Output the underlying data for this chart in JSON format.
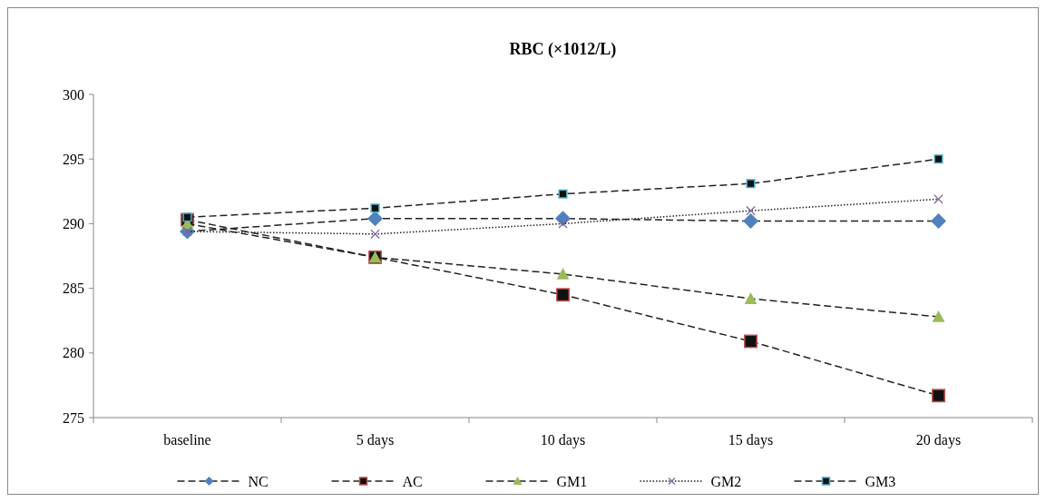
{
  "chart_data": {
    "type": "line",
    "title": "RBC (×1012/L)",
    "categories": [
      "baseline",
      "5 days",
      "10 days",
      "15 days",
      "20 days"
    ],
    "series": [
      {
        "name": "NC",
        "color": "#4f81bd",
        "marker": "diamond",
        "line_style": "dashed",
        "values": [
          289.4,
          290.4,
          290.4,
          290.2,
          290.2
        ]
      },
      {
        "name": "AC",
        "color": "#c0504d",
        "marker": "square",
        "line_style": "dashed",
        "values": [
          290.3,
          287.4,
          284.5,
          280.9,
          276.7
        ]
      },
      {
        "name": "GM1",
        "color": "#9bbb59",
        "marker": "triangle",
        "line_style": "dashed",
        "values": [
          290.0,
          287.4,
          286.1,
          284.2,
          282.8
        ]
      },
      {
        "name": "GM2",
        "color": "#8064a2",
        "marker": "cross",
        "line_style": "dotted",
        "values": [
          289.4,
          289.2,
          290.0,
          291.0,
          291.9
        ]
      },
      {
        "name": "GM3",
        "color": "#4bacc6",
        "marker": "square",
        "line_style": "dashed",
        "values": [
          290.5,
          291.2,
          292.3,
          293.1,
          295.0
        ]
      }
    ],
    "ylim": [
      275,
      300
    ],
    "yticks": [
      275,
      280,
      285,
      290,
      295,
      300
    ],
    "grid": false,
    "legend": "bottom"
  }
}
